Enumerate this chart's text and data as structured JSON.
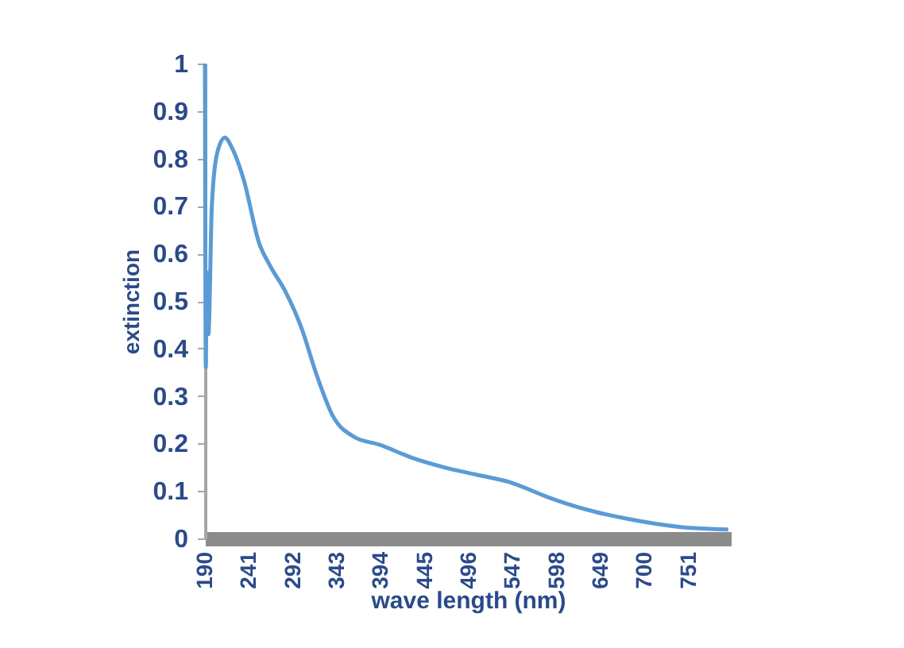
{
  "chart_data": {
    "type": "line",
    "xlabel": "wave length (nm)",
    "ylabel": "extinction",
    "x": [
      190,
      191,
      192,
      194,
      198,
      204,
      213,
      222,
      235,
      253,
      265,
      283,
      302,
      320,
      338,
      363,
      393,
      430,
      467,
      503,
      546,
      589,
      632,
      681,
      742,
      797
    ],
    "series": [
      {
        "color": "#5b9bd5",
        "values": [
          1.0,
          0.36,
          0.56,
          0.43,
          0.7,
          0.81,
          0.844,
          0.82,
          0.755,
          0.621,
          0.576,
          0.521,
          0.443,
          0.342,
          0.259,
          0.214,
          0.197,
          0.17,
          0.15,
          0.135,
          0.117,
          0.086,
          0.061,
          0.041,
          0.024,
          0.019
        ]
      }
    ],
    "xlim": [
      190,
      800
    ],
    "xticks": [
      190,
      241,
      292,
      343,
      394,
      445,
      496,
      547,
      598,
      649,
      700,
      751
    ],
    "ylim": [
      0,
      1
    ],
    "yticks": [
      0,
      0.1,
      0.2,
      0.3,
      0.4,
      0.5,
      0.6,
      0.7,
      0.8,
      0.9,
      1
    ],
    "grid": false,
    "marker": "none",
    "line_style": "solid"
  }
}
